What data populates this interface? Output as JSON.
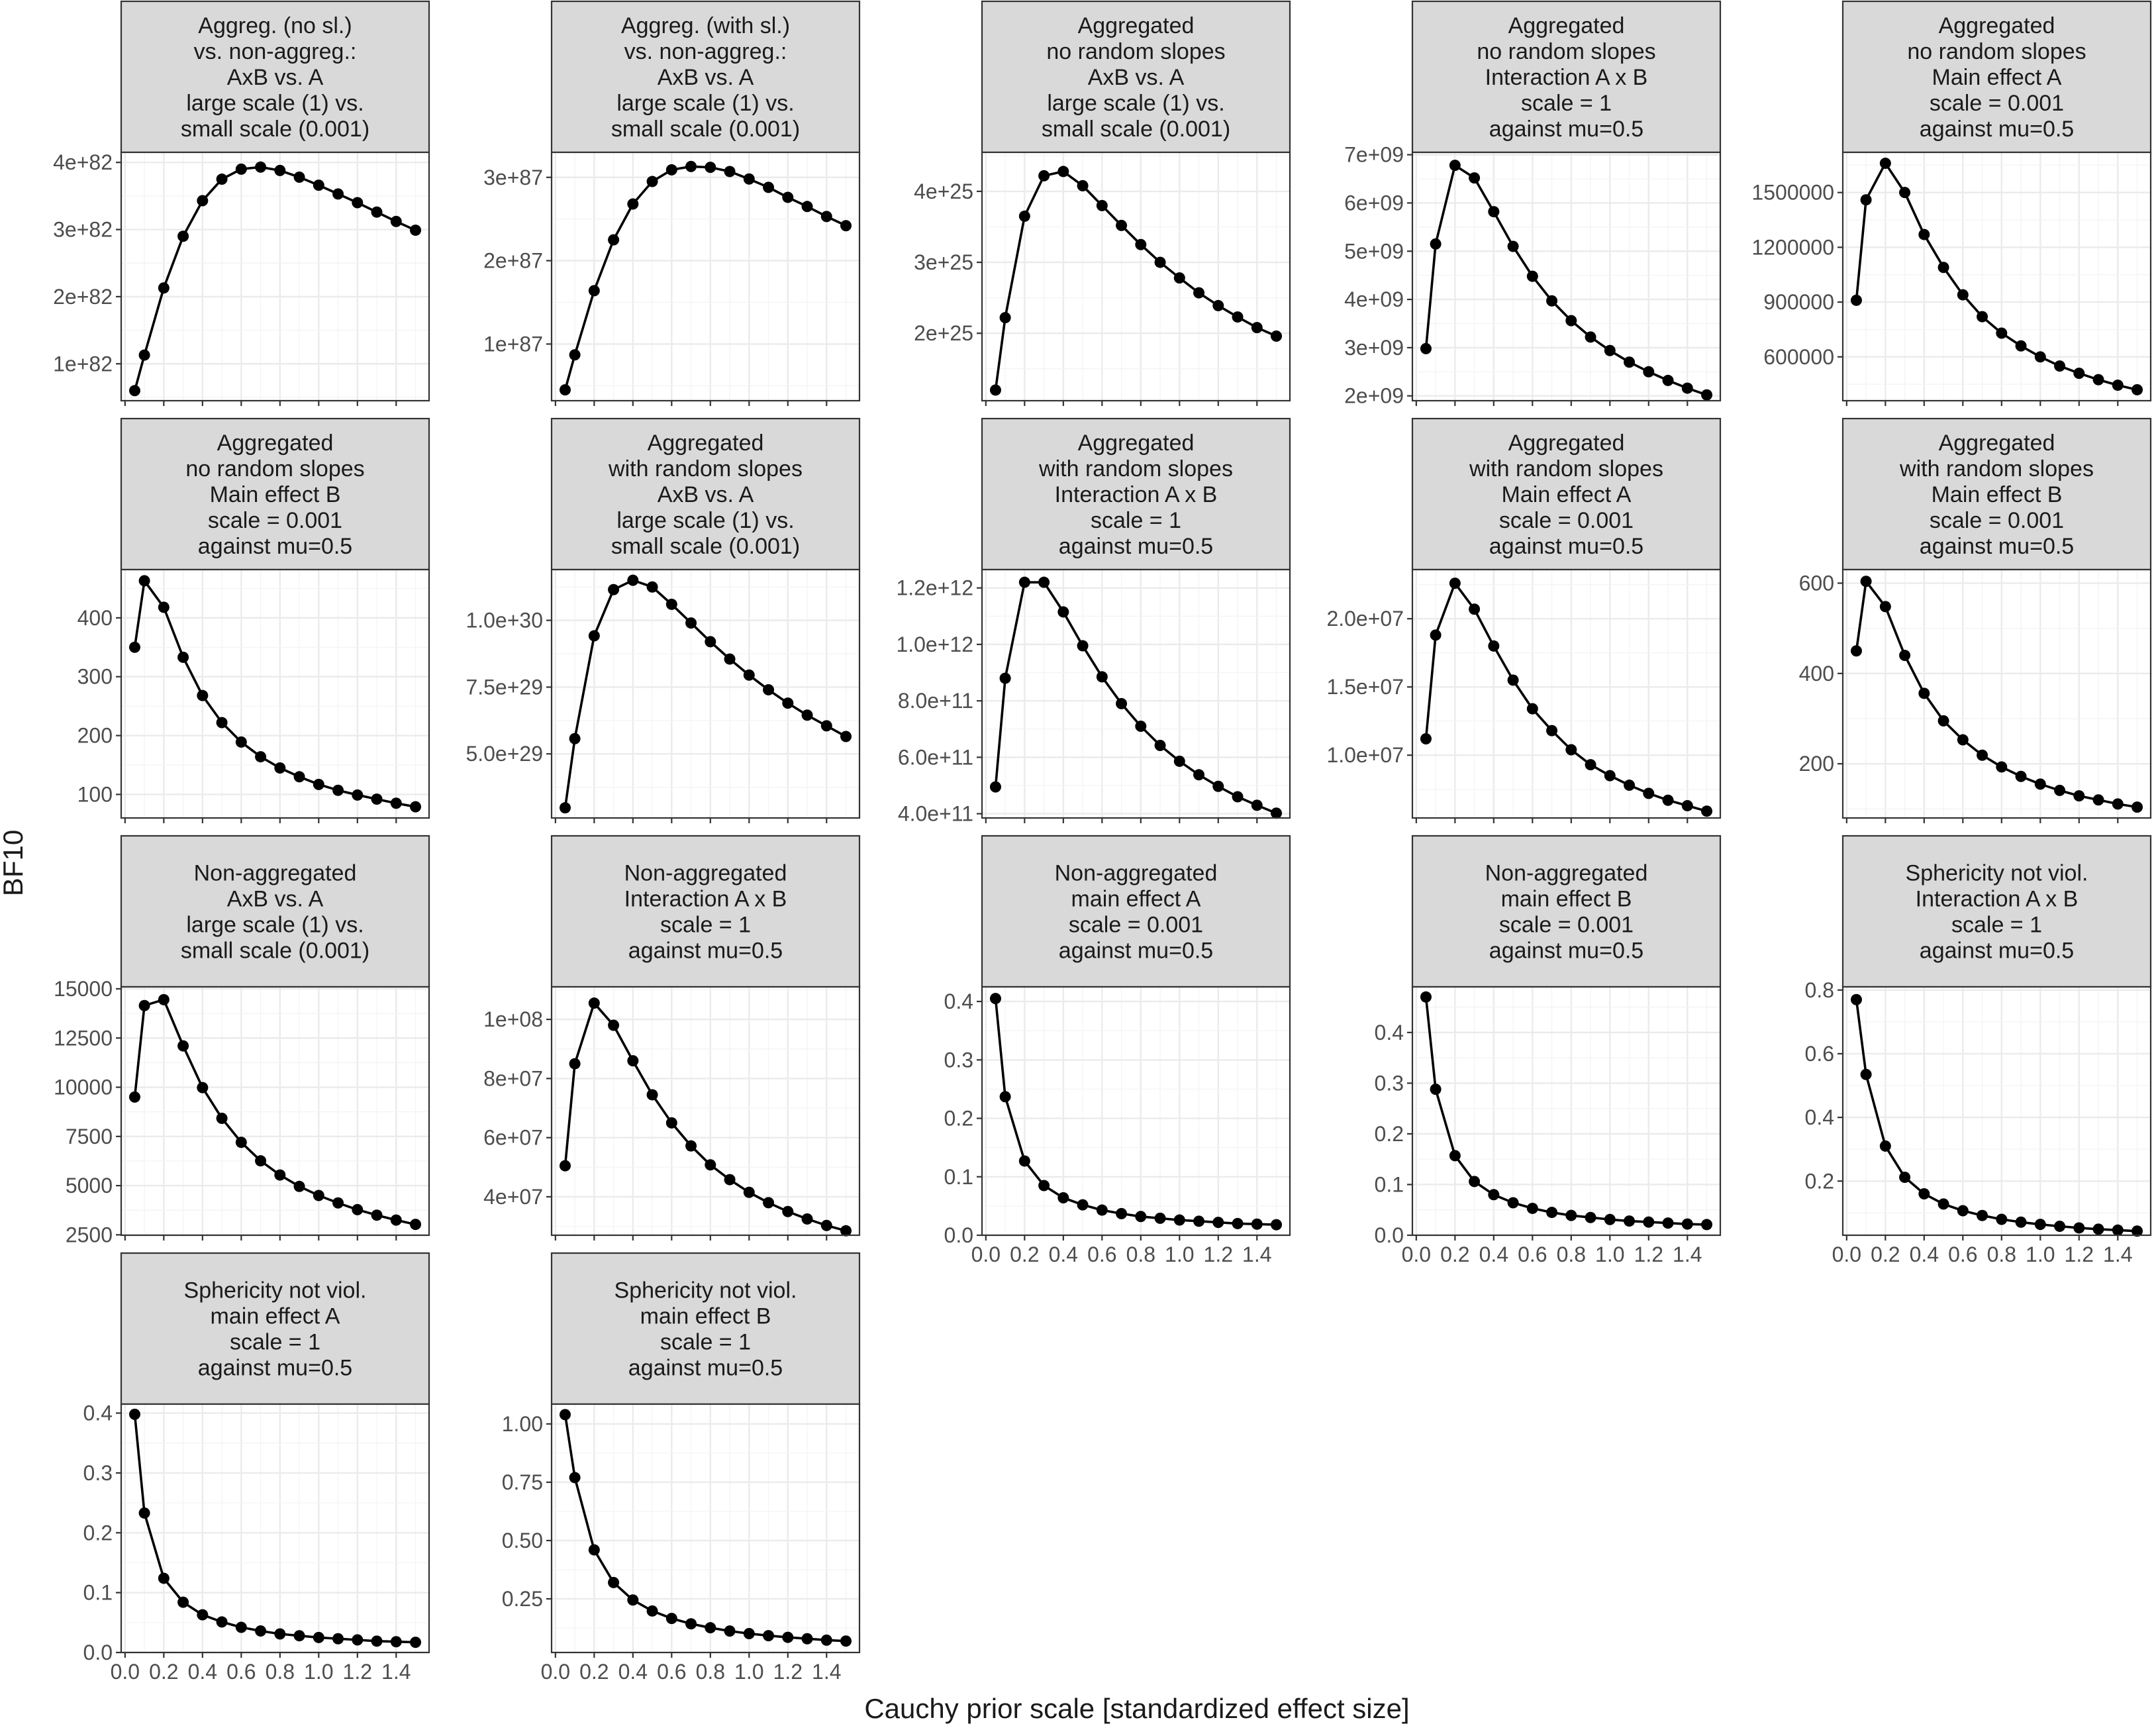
{
  "figure": {
    "ylabel": "BF10",
    "xlabel": "Cauchy prior scale [standardized effect size]",
    "x_ticks": [
      0.0,
      0.2,
      0.4,
      0.6,
      0.8,
      1.0,
      1.2,
      1.4
    ],
    "x_tick_labels": [
      "0.0",
      "0.2",
      "0.4",
      "0.6",
      "0.8",
      "1.0",
      "1.2",
      "1.4"
    ]
  },
  "chart_data": [
    {
      "type": "line",
      "title": [
        "Aggreg. (no sl.)",
        "vs. non-aggreg.:",
        "AxB vs. A",
        "large scale (1) vs.",
        "small scale (0.001)"
      ],
      "x": [
        0.05,
        0.1,
        0.2,
        0.3,
        0.4,
        0.5,
        0.6,
        0.7,
        0.8,
        0.9,
        1.0,
        1.1,
        1.2,
        1.3,
        1.4,
        1.5
      ],
      "y": [
        6e+81,
        1.13e+82,
        2.13e+82,
        2.9e+82,
        3.43e+82,
        3.75e+82,
        3.9e+82,
        3.93e+82,
        3.88e+82,
        3.78e+82,
        3.66e+82,
        3.53e+82,
        3.4e+82,
        3.26e+82,
        3.12e+82,
        2.99e+82
      ],
      "ylim": [
        4.5e+81,
        4.15e+82
      ],
      "yticks": [
        1e+82,
        2e+82,
        3e+82,
        4e+82
      ],
      "ytick_labels": [
        "1e+82",
        "2e+82",
        "3e+82",
        "4e+82"
      ]
    },
    {
      "type": "line",
      "title": [
        "Aggreg. (with sl.)",
        "vs. non-aggreg.:",
        "AxB vs. A",
        "large scale (1) vs.",
        "small scale (0.001)"
      ],
      "x": [
        0.05,
        0.1,
        0.2,
        0.3,
        0.4,
        0.5,
        0.6,
        0.7,
        0.8,
        0.9,
        1.0,
        1.1,
        1.2,
        1.3,
        1.4,
        1.5
      ],
      "y": [
        4.5e+86,
        8.7e+86,
        1.64e+87,
        2.25e+87,
        2.68e+87,
        2.95e+87,
        3.09e+87,
        3.13e+87,
        3.12e+87,
        3.07e+87,
        2.98e+87,
        2.88e+87,
        2.76e+87,
        2.65e+87,
        2.53e+87,
        2.42e+87
      ],
      "ylim": [
        3.2e+86,
        3.3e+87
      ],
      "yticks": [
        1e+87,
        2e+87,
        3e+87
      ],
      "ytick_labels": [
        "1e+87",
        "2e+87",
        "3e+87"
      ]
    },
    {
      "type": "line",
      "title": [
        "Aggregated",
        "no random slopes",
        "AxB vs. A",
        "large scale (1) vs.",
        "small scale (0.001)"
      ],
      "x": [
        0.05,
        0.1,
        0.2,
        0.3,
        0.4,
        0.5,
        0.6,
        0.7,
        0.8,
        0.9,
        1.0,
        1.1,
        1.2,
        1.3,
        1.4,
        1.5
      ],
      "y": [
        1.2e+25,
        2.22e+25,
        3.65e+25,
        4.22e+25,
        4.28e+25,
        4.08e+25,
        3.8e+25,
        3.52e+25,
        3.25e+25,
        3e+25,
        2.78e+25,
        2.57e+25,
        2.39e+25,
        2.23e+25,
        2.08e+25,
        1.96e+25
      ],
      "ylim": [
        1.05e+25,
        4.55e+25
      ],
      "yticks": [
        2e+25,
        3e+25,
        4e+25
      ],
      "ytick_labels": [
        "2e+25",
        "3e+25",
        "4e+25"
      ]
    },
    {
      "type": "line",
      "title": [
        "Aggregated",
        "no random slopes",
        "Interaction A x B",
        "scale = 1",
        "against mu=0.5"
      ],
      "x": [
        0.05,
        0.1,
        0.2,
        0.3,
        0.4,
        0.5,
        0.6,
        0.7,
        0.8,
        0.9,
        1.0,
        1.1,
        1.2,
        1.3,
        1.4,
        1.5
      ],
      "y": [
        2980000000.0,
        5150000000.0,
        6780000000.0,
        6520000000.0,
        5820000000.0,
        5100000000.0,
        4480000000.0,
        3970000000.0,
        3560000000.0,
        3220000000.0,
        2940000000.0,
        2700000000.0,
        2500000000.0,
        2320000000.0,
        2160000000.0,
        2020000000.0
      ],
      "ylim": [
        1900000000.0,
        7050000000.0
      ],
      "yticks": [
        2000000000.0,
        3000000000.0,
        4000000000.0,
        5000000000.0,
        6000000000.0,
        7000000000.0
      ],
      "ytick_labels": [
        "2e+09",
        "3e+09",
        "4e+09",
        "5e+09",
        "6e+09",
        "7e+09"
      ]
    },
    {
      "type": "line",
      "title": [
        "Aggregated",
        "no random slopes",
        "Main effect A",
        "scale = 0.001",
        "against mu=0.5"
      ],
      "x": [
        0.05,
        0.1,
        0.2,
        0.3,
        0.4,
        0.5,
        0.6,
        0.7,
        0.8,
        0.9,
        1.0,
        1.1,
        1.2,
        1.3,
        1.4,
        1.5
      ],
      "y": [
        910000,
        1460000,
        1660000,
        1500000,
        1270000,
        1090000,
        940000,
        820000,
        730000,
        660000,
        600000,
        550000,
        510000,
        475000,
        445000,
        420000
      ],
      "ylim": [
        360000,
        1720000
      ],
      "yticks": [
        600000,
        900000,
        1200000,
        1500000
      ],
      "ytick_labels": [
        "600000",
        "900000",
        "1200000",
        "1500000"
      ]
    },
    {
      "type": "line",
      "title": [
        "Aggregated",
        "no random slopes",
        "Main effect B",
        "scale = 0.001",
        "against mu=0.5"
      ],
      "x": [
        0.05,
        0.1,
        0.2,
        0.3,
        0.4,
        0.5,
        0.6,
        0.7,
        0.8,
        0.9,
        1.0,
        1.1,
        1.2,
        1.3,
        1.4,
        1.5
      ],
      "y": [
        350,
        463,
        418,
        333,
        268,
        222,
        189,
        164,
        145,
        130,
        117,
        107,
        99,
        92,
        85,
        79
      ],
      "ylim": [
        60,
        482
      ],
      "yticks": [
        100,
        200,
        300,
        400
      ],
      "ytick_labels": [
        "100",
        "200",
        "300",
        "400"
      ]
    },
    {
      "type": "line",
      "title": [
        "Aggregated",
        "with random slopes",
        "AxB vs. A",
        "large scale (1) vs.",
        "small scale (0.001)"
      ],
      "x": [
        0.05,
        0.1,
        0.2,
        0.3,
        0.4,
        0.5,
        0.6,
        0.7,
        0.8,
        0.9,
        1.0,
        1.1,
        1.2,
        1.3,
        1.4,
        1.5
      ],
      "y": [
        2.98e+29,
        5.57e+29,
        9.42e+29,
        1.115e+30,
        1.15e+30,
        1.125e+30,
        1.06e+30,
        9.9e+29,
        9.2e+29,
        8.55e+29,
        7.95e+29,
        7.4e+29,
        6.9e+29,
        6.45e+29,
        6.05e+29,
        5.65e+29
      ],
      "ylim": [
        2.6e+29,
        1.19e+30
      ],
      "yticks": [
        5e+29,
        7.5e+29,
        1e+30
      ],
      "ytick_labels": [
        "5.0e+29",
        "7.5e+29",
        "1.0e+30"
      ]
    },
    {
      "type": "line",
      "title": [
        "Aggregated",
        "with random slopes",
        "Interaction A x B",
        "scale = 1",
        "against mu=0.5"
      ],
      "x": [
        0.05,
        0.1,
        0.2,
        0.3,
        0.4,
        0.5,
        0.6,
        0.7,
        0.8,
        0.9,
        1.0,
        1.1,
        1.2,
        1.3,
        1.4,
        1.5
      ],
      "y": [
        495000000000.0,
        880000000000.0,
        1220000000000.0,
        1220000000000.0,
        1115000000000.0,
        995000000000.0,
        885000000000.0,
        790000000000.0,
        710000000000.0,
        642000000000.0,
        586000000000.0,
        538000000000.0,
        497000000000.0,
        460000000000.0,
        430000000000.0,
        402000000000.0
      ],
      "ylim": [
        385000000000.0,
        1265000000000.0
      ],
      "yticks": [
        400000000000.0,
        600000000000.0,
        800000000000.0,
        1000000000000.0,
        1200000000000.0
      ],
      "ytick_labels": [
        "4.0e+11",
        "6.0e+11",
        "8.0e+11",
        "1.0e+12",
        "1.2e+12"
      ]
    },
    {
      "type": "line",
      "title": [
        "Aggregated",
        "with random slopes",
        "Main effect A",
        "scale = 0.001",
        "against mu=0.5"
      ],
      "x": [
        0.05,
        0.1,
        0.2,
        0.3,
        0.4,
        0.5,
        0.6,
        0.7,
        0.8,
        0.9,
        1.0,
        1.1,
        1.2,
        1.3,
        1.4,
        1.5
      ],
      "y": [
        11200000.0,
        18800000.0,
        22600000.0,
        20700000.0,
        18000000.0,
        15500000.0,
        13400000.0,
        11800000.0,
        10400000.0,
        9300000.0,
        8500000.0,
        7800000.0,
        7200000.0,
        6700000.0,
        6300000.0,
        5900000.0
      ],
      "ylim": [
        5400000.0,
        23600000.0
      ],
      "yticks": [
        10000000.0,
        15000000.0,
        20000000.0
      ],
      "ytick_labels": [
        "1.0e+07",
        "1.5e+07",
        "2.0e+07"
      ]
    },
    {
      "type": "line",
      "title": [
        "Aggregated",
        "with random slopes",
        "Main effect B",
        "scale = 0.001",
        "against mu=0.5"
      ],
      "x": [
        0.05,
        0.1,
        0.2,
        0.3,
        0.4,
        0.5,
        0.6,
        0.7,
        0.8,
        0.9,
        1.0,
        1.1,
        1.2,
        1.3,
        1.4,
        1.5
      ],
      "y": [
        450,
        604,
        548,
        440,
        356,
        295,
        253,
        219,
        193,
        172,
        155,
        141,
        129,
        120,
        111,
        104
      ],
      "ylim": [
        80,
        630
      ],
      "yticks": [
        200,
        400,
        600
      ],
      "ytick_labels": [
        "200",
        "400",
        "600"
      ]
    },
    {
      "type": "line",
      "title": [
        "Non-aggregated",
        "AxB vs. A",
        "large scale (1) vs.",
        "small scale (0.001)"
      ],
      "x": [
        0.05,
        0.1,
        0.2,
        0.3,
        0.4,
        0.5,
        0.6,
        0.7,
        0.8,
        0.9,
        1.0,
        1.1,
        1.2,
        1.3,
        1.4,
        1.5
      ],
      "y": [
        9500,
        14150,
        14450,
        12100,
        9980,
        8420,
        7200,
        6260,
        5540,
        4960,
        4500,
        4120,
        3780,
        3500,
        3250,
        3030
      ],
      "ylim": [
        2480,
        15100
      ],
      "yticks": [
        2500,
        5000,
        7500,
        10000,
        12500,
        15000
      ],
      "ytick_labels": [
        "2500",
        "5000",
        "7500",
        "10000",
        "12500",
        "15000"
      ]
    },
    {
      "type": "line",
      "title": [
        "Non-aggregated",
        "Interaction A x B",
        "scale = 1",
        "against mu=0.5"
      ],
      "x": [
        0.05,
        0.1,
        0.2,
        0.3,
        0.4,
        0.5,
        0.6,
        0.7,
        0.8,
        0.9,
        1.0,
        1.1,
        1.2,
        1.3,
        1.4,
        1.5
      ],
      "y": [
        50500000.0,
        85000000.0,
        105500000.0,
        98000000.0,
        86000000.0,
        74500000.0,
        65000000.0,
        57200000.0,
        50800000.0,
        45800000.0,
        41500000.0,
        38000000.0,
        35000000.0,
        32500000.0,
        30300000.0,
        28500000.0
      ],
      "ylim": [
        27000000.0,
        111000000.0
      ],
      "yticks": [
        40000000.0,
        60000000.0,
        80000000.0,
        100000000.0
      ],
      "ytick_labels": [
        "4e+07",
        "6e+07",
        "8e+07",
        "1e+08"
      ]
    },
    {
      "type": "line",
      "title": [
        "Non-aggregated",
        "main effect A",
        "scale = 0.001",
        "against mu=0.5"
      ],
      "x": [
        0.05,
        0.1,
        0.2,
        0.3,
        0.4,
        0.5,
        0.6,
        0.7,
        0.8,
        0.9,
        1.0,
        1.1,
        1.2,
        1.3,
        1.4,
        1.5
      ],
      "y": [
        0.405,
        0.237,
        0.127,
        0.085,
        0.064,
        0.052,
        0.043,
        0.037,
        0.032,
        0.029,
        0.026,
        0.024,
        0.022,
        0.02,
        0.019,
        0.018
      ],
      "ylim": [
        0.0,
        0.425
      ],
      "yticks": [
        0,
        0.1,
        0.2,
        0.3,
        0.4
      ],
      "ytick_labels": [
        "0.0",
        "0.1",
        "0.2",
        "0.3",
        "0.4"
      ]
    },
    {
      "type": "line",
      "title": [
        "Non-aggregated",
        "main effect B",
        "scale = 0.001",
        "against mu=0.5"
      ],
      "x": [
        0.05,
        0.1,
        0.2,
        0.3,
        0.4,
        0.5,
        0.6,
        0.7,
        0.8,
        0.9,
        1.0,
        1.1,
        1.2,
        1.3,
        1.4,
        1.5
      ],
      "y": [
        0.47,
        0.288,
        0.157,
        0.106,
        0.08,
        0.064,
        0.053,
        0.045,
        0.039,
        0.035,
        0.031,
        0.028,
        0.026,
        0.024,
        0.022,
        0.021
      ],
      "ylim": [
        0.0,
        0.49
      ],
      "yticks": [
        0,
        0.1,
        0.2,
        0.3,
        0.4
      ],
      "ytick_labels": [
        "0.0",
        "0.1",
        "0.2",
        "0.3",
        "0.4"
      ]
    },
    {
      "type": "line",
      "title": [
        "Sphericity not viol.",
        "Interaction A x B",
        "scale = 1",
        "against mu=0.5"
      ],
      "x": [
        0.05,
        0.1,
        0.2,
        0.3,
        0.4,
        0.5,
        0.6,
        0.7,
        0.8,
        0.9,
        1.0,
        1.1,
        1.2,
        1.3,
        1.4,
        1.5
      ],
      "y": [
        0.77,
        0.535,
        0.31,
        0.212,
        0.16,
        0.128,
        0.107,
        0.092,
        0.08,
        0.071,
        0.064,
        0.058,
        0.053,
        0.049,
        0.046,
        0.043
      ],
      "ylim": [
        0.03,
        0.81
      ],
      "yticks": [
        0.2,
        0.4,
        0.6,
        0.8
      ],
      "ytick_labels": [
        "0.2",
        "0.4",
        "0.6",
        "0.8"
      ]
    },
    {
      "type": "line",
      "title": [
        "Sphericity not viol.",
        "main effect A",
        "scale = 1",
        "against mu=0.5"
      ],
      "x": [
        0.05,
        0.1,
        0.2,
        0.3,
        0.4,
        0.5,
        0.6,
        0.7,
        0.8,
        0.9,
        1.0,
        1.1,
        1.2,
        1.3,
        1.4,
        1.5
      ],
      "y": [
        0.398,
        0.233,
        0.124,
        0.084,
        0.063,
        0.051,
        0.042,
        0.036,
        0.031,
        0.028,
        0.025,
        0.023,
        0.021,
        0.019,
        0.018,
        0.017
      ],
      "ylim": [
        0.0,
        0.415
      ],
      "yticks": [
        0,
        0.1,
        0.2,
        0.3,
        0.4
      ],
      "ytick_labels": [
        "0.0",
        "0.1",
        "0.2",
        "0.3",
        "0.4"
      ]
    },
    {
      "type": "line",
      "title": [
        "Sphericity not viol.",
        "main effect B",
        "scale = 1",
        "against mu=0.5"
      ],
      "x": [
        0.05,
        0.1,
        0.2,
        0.3,
        0.4,
        0.5,
        0.6,
        0.7,
        0.8,
        0.9,
        1.0,
        1.1,
        1.2,
        1.3,
        1.4,
        1.5
      ],
      "y": [
        1.04,
        0.77,
        0.46,
        0.32,
        0.245,
        0.198,
        0.166,
        0.143,
        0.126,
        0.112,
        0.101,
        0.092,
        0.085,
        0.079,
        0.073,
        0.069
      ],
      "ylim": [
        0.02,
        1.085
      ],
      "yticks": [
        0.25,
        0.5,
        0.75,
        1.0
      ],
      "ytick_labels": [
        "0.25",
        "0.50",
        "0.75",
        "1.00"
      ]
    }
  ]
}
